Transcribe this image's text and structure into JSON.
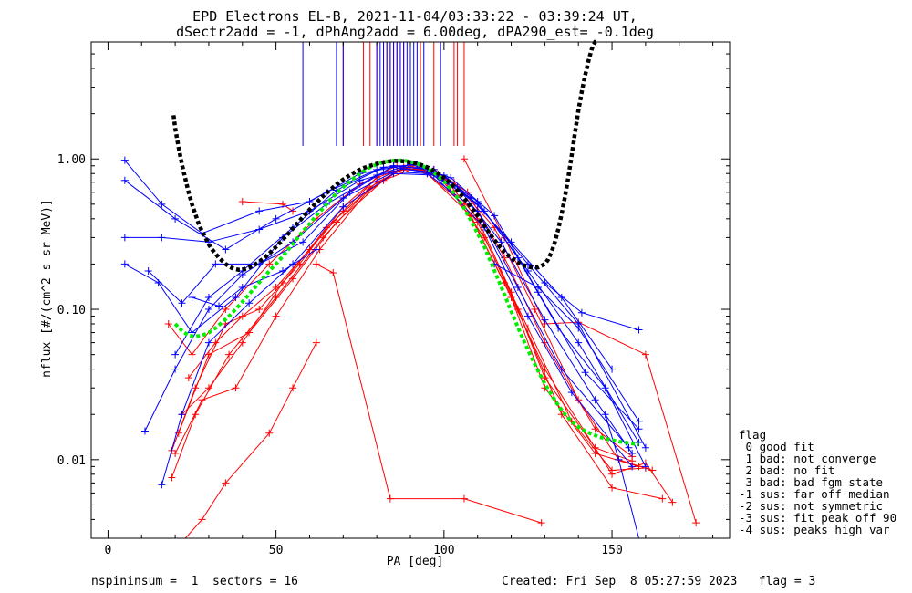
{
  "chart_data": {
    "type": "line",
    "title_line1": "EPD Electrons EL-B, 2021-11-04/03:33:22 - 03:39:24 UT,",
    "title_line2": "dSectr2add = -1, dPhAng2add = 6.00deg, dPA290_est=  -0.1deg",
    "xlabel": "PA [deg]",
    "ylabel": "nflux [#/(cm^2 s sr MeV)]",
    "xlim": [
      -5,
      185
    ],
    "ylim": [
      0.003,
      6.0
    ],
    "y_scale": "log",
    "x_ticks": [
      0,
      50,
      100,
      150
    ],
    "x_tick_labels": [
      "0",
      "50",
      "100",
      "150"
    ],
    "y_ticks": [
      0.01,
      0.1,
      1.0
    ],
    "y_tick_labels": [
      "0.01",
      "0.10",
      "1.00"
    ],
    "colors": {
      "blue": "#0000ff",
      "red": "#ff0000",
      "black": "#000000",
      "green": "#00ee00"
    },
    "fit_curve_black": {
      "x": [
        19.5,
        20,
        21,
        22,
        23,
        24,
        25,
        26,
        27,
        28,
        29,
        30,
        31,
        32,
        33,
        34,
        35,
        36,
        37,
        38,
        39,
        40,
        42,
        44,
        46,
        48,
        50,
        52,
        54,
        56,
        58,
        60,
        62,
        64,
        66,
        68,
        70,
        72,
        74,
        76,
        78,
        80,
        82,
        84,
        86,
        88,
        90,
        92,
        94,
        96,
        98,
        100,
        102,
        104,
        106,
        108,
        110,
        112,
        114,
        116,
        118,
        120,
        122,
        124,
        126,
        128,
        130,
        131,
        132,
        133,
        134,
        135,
        136,
        137,
        138,
        139,
        140,
        141,
        142,
        143,
        144,
        145,
        146
      ],
      "y": [
        1.95,
        1.6,
        1.2,
        0.92,
        0.74,
        0.6,
        0.5,
        0.43,
        0.37,
        0.33,
        0.3,
        0.27,
        0.25,
        0.235,
        0.22,
        0.21,
        0.2,
        0.193,
        0.188,
        0.185,
        0.183,
        0.183,
        0.19,
        0.2,
        0.215,
        0.235,
        0.26,
        0.29,
        0.325,
        0.365,
        0.41,
        0.46,
        0.51,
        0.565,
        0.62,
        0.675,
        0.73,
        0.78,
        0.83,
        0.87,
        0.9,
        0.93,
        0.95,
        0.965,
        0.97,
        0.965,
        0.95,
        0.93,
        0.9,
        0.86,
        0.81,
        0.75,
        0.69,
        0.62,
        0.55,
        0.48,
        0.42,
        0.36,
        0.31,
        0.27,
        0.24,
        0.22,
        0.205,
        0.195,
        0.19,
        0.19,
        0.2,
        0.215,
        0.24,
        0.28,
        0.34,
        0.43,
        0.56,
        0.76,
        1.05,
        1.5,
        2.1,
        2.8,
        3.6,
        4.5,
        5.4,
        6.0,
        6.0
      ]
    },
    "fit_curve_green": {
      "x": [
        20,
        22,
        24,
        26,
        28,
        30,
        32,
        34,
        36,
        38,
        40,
        42,
        44,
        46,
        48,
        50,
        52,
        54,
        56,
        58,
        60,
        62,
        64,
        66,
        68,
        70,
        72,
        74,
        76,
        78,
        80,
        82,
        84,
        86,
        88,
        90,
        92,
        94,
        96,
        98,
        100,
        102,
        104,
        106,
        108,
        110,
        112,
        114,
        116,
        118,
        120,
        122,
        124,
        126,
        128,
        130,
        132,
        134,
        136,
        138,
        140,
        142,
        144,
        146,
        148,
        150,
        152,
        154,
        156,
        158
      ],
      "y": [
        0.08,
        0.072,
        0.067,
        0.066,
        0.067,
        0.07,
        0.075,
        0.082,
        0.09,
        0.1,
        0.112,
        0.126,
        0.142,
        0.16,
        0.18,
        0.2,
        0.225,
        0.255,
        0.29,
        0.33,
        0.37,
        0.42,
        0.47,
        0.53,
        0.59,
        0.65,
        0.71,
        0.77,
        0.83,
        0.88,
        0.92,
        0.95,
        0.97,
        0.98,
        0.975,
        0.96,
        0.93,
        0.89,
        0.84,
        0.78,
        0.71,
        0.63,
        0.55,
        0.47,
        0.39,
        0.32,
        0.26,
        0.205,
        0.16,
        0.125,
        0.097,
        0.076,
        0.06,
        0.048,
        0.039,
        0.032,
        0.027,
        0.023,
        0.02,
        0.018,
        0.0165,
        0.0155,
        0.0148,
        0.0142,
        0.0138,
        0.0135,
        0.0132,
        0.013,
        0.0128,
        0.0126
      ]
    },
    "vertical_markers_blue": [
      58,
      68,
      70,
      80,
      81,
      82,
      83,
      84,
      85,
      86,
      87,
      88,
      89,
      90,
      91,
      92,
      94,
      99
    ],
    "vertical_markers_red": [
      70,
      76,
      78,
      80,
      82,
      83,
      84,
      85,
      86,
      87,
      88,
      90,
      93,
      97,
      103,
      104,
      106
    ],
    "sample_traces_blue": [
      {
        "x": [
          5,
          20,
          35,
          50,
          65,
          80,
          85,
          95,
          110,
          125,
          140,
          160
        ],
        "y": [
          0.72,
          0.4,
          0.25,
          0.4,
          0.6,
          0.85,
          0.9,
          0.85,
          0.5,
          0.2,
          0.08,
          0.012
        ]
      },
      {
        "x": [
          5,
          16,
          28,
          45,
          60,
          75,
          85,
          95,
          108,
          120,
          135,
          150
        ],
        "y": [
          0.98,
          0.5,
          0.32,
          0.45,
          0.52,
          0.8,
          0.88,
          0.82,
          0.55,
          0.28,
          0.12,
          0.04
        ]
      },
      {
        "x": [
          5,
          16,
          30,
          45,
          60,
          75,
          88,
          100,
          112,
          125,
          140,
          158
        ],
        "y": [
          0.3,
          0.3,
          0.28,
          0.34,
          0.45,
          0.72,
          0.86,
          0.78,
          0.45,
          0.18,
          0.06,
          0.013
        ]
      },
      {
        "x": [
          11,
          20,
          30,
          40,
          55,
          70,
          85,
          95,
          110,
          122,
          135,
          155
        ],
        "y": [
          0.0155,
          0.04,
          0.1,
          0.17,
          0.28,
          0.55,
          0.82,
          0.8,
          0.45,
          0.14,
          0.04,
          0.012
        ]
      },
      {
        "x": [
          16,
          22,
          30,
          42,
          55,
          70,
          85,
          97,
          112,
          125,
          138,
          156
        ],
        "y": [
          0.0068,
          0.02,
          0.06,
          0.11,
          0.2,
          0.48,
          0.8,
          0.78,
          0.35,
          0.09,
          0.028,
          0.009
        ]
      },
      {
        "x": [
          5,
          15,
          25,
          38,
          52,
          65,
          80,
          90,
          102,
          115,
          128,
          142,
          158
        ],
        "y": [
          0.2,
          0.15,
          0.07,
          0.12,
          0.3,
          0.5,
          0.78,
          0.92,
          0.75,
          0.42,
          0.13,
          0.038,
          0.016
        ]
      },
      {
        "x": [
          12,
          22,
          32,
          45,
          58,
          72,
          85,
          97,
          110,
          122,
          134,
          148,
          160
        ],
        "y": [
          0.18,
          0.11,
          0.2,
          0.2,
          0.28,
          0.6,
          0.9,
          0.85,
          0.52,
          0.22,
          0.075,
          0.03,
          0.009
        ]
      },
      {
        "x": [
          20,
          30,
          40,
          55,
          68,
          82,
          92,
          104,
          117,
          130,
          145,
          156
        ],
        "y": [
          0.05,
          0.12,
          0.18,
          0.35,
          0.62,
          0.88,
          0.92,
          0.65,
          0.28,
          0.085,
          0.025,
          0.011
        ]
      }
    ],
    "sample_traces_red": [
      {
        "x": [
          18,
          25,
          35,
          48,
          62,
          75,
          86,
          95,
          108,
          120,
          130,
          145,
          158
        ],
        "y": [
          0.08,
          0.05,
          0.1,
          0.2,
          0.4,
          0.68,
          0.9,
          0.8,
          0.42,
          0.12,
          0.03,
          0.011,
          0.009
        ]
      },
      {
        "x": [
          19,
          26,
          36,
          50,
          64,
          78,
          88,
          98,
          110,
          122,
          135,
          150,
          165
        ],
        "y": [
          0.0076,
          0.02,
          0.05,
          0.12,
          0.3,
          0.65,
          0.88,
          0.78,
          0.38,
          0.1,
          0.02,
          0.0065,
          0.0055
        ]
      },
      {
        "x": [
          22,
          30,
          40,
          52,
          65,
          80,
          90,
          100,
          112,
          125,
          138,
          150,
          160
        ],
        "y": [
          0.02,
          0.03,
          0.06,
          0.15,
          0.35,
          0.7,
          0.9,
          0.72,
          0.3,
          0.075,
          0.018,
          0.0085,
          0.0088
        ]
      },
      {
        "x": [
          20,
          28,
          38,
          50,
          63,
          77,
          87,
          97,
          107,
          118,
          130,
          145,
          156
        ],
        "y": [
          0.011,
          0.025,
          0.03,
          0.09,
          0.25,
          0.6,
          0.85,
          0.85,
          0.6,
          0.22,
          0.06,
          0.016,
          0.0105
        ]
      },
      {
        "x": [
          21,
          30,
          42,
          55,
          68,
          82,
          92,
          103,
          115,
          127,
          140,
          152,
          162
        ],
        "y": [
          0.015,
          0.05,
          0.07,
          0.16,
          0.38,
          0.72,
          0.88,
          0.7,
          0.35,
          0.1,
          0.025,
          0.01,
          0.0085
        ]
      },
      {
        "x": [
          24,
          32,
          40,
          50,
          60,
          70,
          80,
          90,
          100,
          110,
          120,
          130,
          145,
          156
        ],
        "y": [
          0.035,
          0.06,
          0.09,
          0.14,
          0.25,
          0.45,
          0.75,
          0.9,
          0.75,
          0.4,
          0.13,
          0.035,
          0.012,
          0.0098
        ]
      },
      {
        "x": [
          19,
          26,
          35,
          45,
          57,
          70,
          82,
          93,
          106,
          118,
          130,
          150,
          160,
          168
        ],
        "y": [
          0.0115,
          0.03,
          0.08,
          0.1,
          0.2,
          0.48,
          0.82,
          0.86,
          0.5,
          0.15,
          0.04,
          0.008,
          0.0095,
          0.0052
        ]
      }
    ],
    "extra_red_segments": [
      {
        "x": [
          62,
          67,
          84,
          106,
          129
        ],
        "y": [
          0.2,
          0.175,
          0.0055,
          0.0055,
          0.0038
        ]
      },
      {
        "x": [
          40,
          52,
          55
        ],
        "y": [
          0.52,
          0.5,
          0.45
        ]
      },
      {
        "x": [
          106,
          118,
          130,
          140,
          160,
          175
        ],
        "y": [
          1.0,
          0.3,
          0.08,
          0.082,
          0.05,
          0.0038
        ]
      },
      {
        "x": [
          23,
          28,
          35,
          48,
          55,
          62
        ],
        "y": [
          0.0028,
          0.004,
          0.007,
          0.015,
          0.03,
          0.06
        ]
      }
    ],
    "extra_blue_segments": [
      {
        "x": [
          148,
          152,
          158
        ],
        "y": [
          0.02,
          0.01,
          0.0028
        ]
      },
      {
        "x": [
          115,
          128,
          140,
          158
        ],
        "y": [
          0.2,
          0.14,
          0.075,
          0.018
        ]
      },
      {
        "x": [
          130,
          141,
          158
        ],
        "y": [
          0.15,
          0.095,
          0.073
        ]
      },
      {
        "x": [
          25,
          33,
          40,
          52,
          62
        ],
        "y": [
          0.12,
          0.105,
          0.14,
          0.18,
          0.25
        ]
      }
    ],
    "flag_legend": {
      "title": "flag",
      "entries": [
        " 0 good fit",
        " 1 bad: not converge",
        " 2 bad: no fit",
        " 3 bad: bad fgm state",
        "-1 sus: far off median",
        "-2 sus: not symmetric",
        "-3 sus: fit peak off 90",
        "-4 sus: peaks high var"
      ]
    },
    "footer_left": "nspininsum =  1  sectors = 16",
    "footer_right": "Created: Fri Sep  8 05:27:59 2023   flag = 3"
  }
}
